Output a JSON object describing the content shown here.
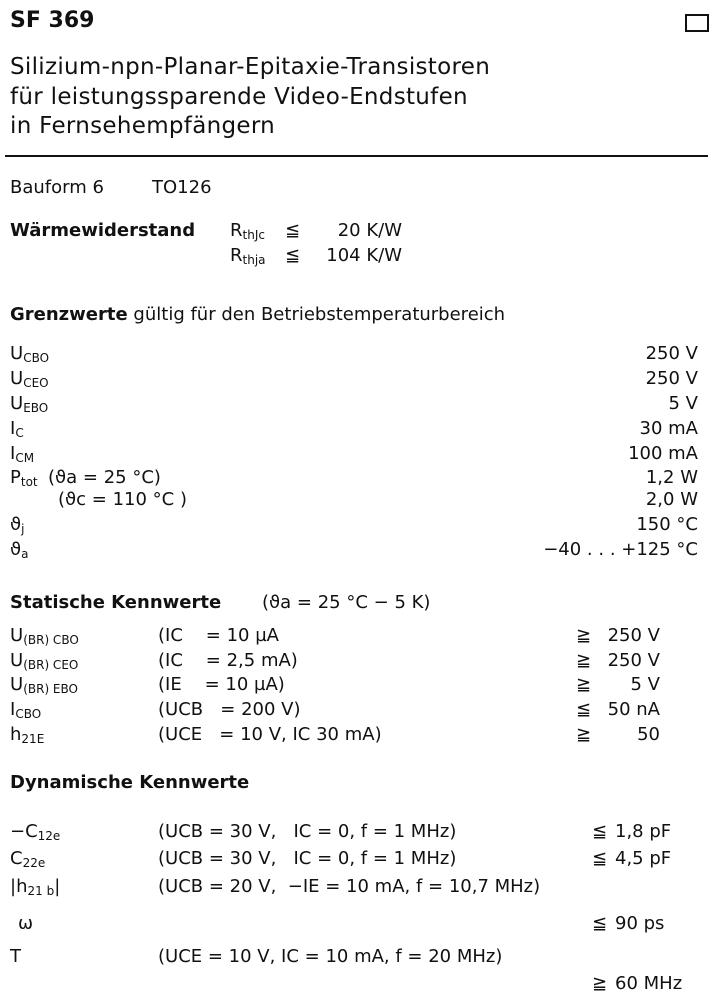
{
  "header": {
    "title": "SF 369",
    "subtitle_lines": [
      "Silizium-npn-Planar-Epitaxie-Transistoren",
      "für leistungssparende Video-Endstufen",
      "in Fernsehempfängern"
    ]
  },
  "package": {
    "label": "Bauform 6",
    "case": "TO126"
  },
  "thermal": {
    "label": "Wärmewiderstand",
    "rows": [
      {
        "sym": "R",
        "sub": "thJc",
        "rel": "≦",
        "value": "20 K/W"
      },
      {
        "sym": "R",
        "sub": "thja",
        "rel": "≦",
        "value": "104 K/W"
      }
    ]
  },
  "limits": {
    "heading_bold": "Grenzwerte",
    "heading_rest": "gültig für den Betriebstemperaturbereich",
    "rows": [
      {
        "sym": "U",
        "sub": "CBO",
        "cond": "",
        "value": "250 V"
      },
      {
        "sym": "U",
        "sub": "CEO",
        "cond": "",
        "value": "250 V"
      },
      {
        "sym": "U",
        "sub": "EBO",
        "cond": "",
        "value": "5 V"
      },
      {
        "sym": "I",
        "sub": "C",
        "cond": "",
        "value": "30 mA"
      },
      {
        "sym": "I",
        "sub": "CM",
        "cond": "",
        "value": "100 mA"
      },
      {
        "sym": "P",
        "sub": "tot",
        "cond": "(ϑa = 25 °C)",
        "value": "1,2 W"
      },
      {
        "sym": "",
        "sub": "",
        "cond": "(ϑc = 110 °C )",
        "value": "2,0 W"
      },
      {
        "sym": "ϑ",
        "sub": "j",
        "cond": "",
        "value": "150 °C"
      },
      {
        "sym": "ϑ",
        "sub": "a",
        "cond": "",
        "value": "−40 . . . +125 °C"
      }
    ]
  },
  "static": {
    "heading_bold": "Statische Kennwerte",
    "heading_cond": "(ϑa = 25 °C − 5 K)",
    "rows": [
      {
        "sym": "U",
        "sub": "(BR) CBO",
        "cond": "(IC    = 10 µA",
        "rel": "≧",
        "value": "250 V"
      },
      {
        "sym": "U",
        "sub": "(BR) CEO",
        "cond": "(IC    = 2,5 mA)",
        "rel": "≧",
        "value": "250 V"
      },
      {
        "sym": "U",
        "sub": "(BR) EBO",
        "cond": "(IE    = 10 µA)",
        "rel": "≧",
        "value": "5 V"
      },
      {
        "sym": "I",
        "sub": "CBO",
        "cond": "(UCB   = 200 V)",
        "rel": "≦",
        "value": "50 nA"
      },
      {
        "sym": "h",
        "sub": "21E",
        "cond": "(UCE   = 10 V, IC 30 mA)",
        "rel": "≧",
        "value": "50"
      }
    ]
  },
  "dynamic": {
    "heading_bold": "Dynamische Kennwerte",
    "rows": [
      {
        "sym": "−C",
        "sub": "12e",
        "cond": "(UCB = 30 V,   IC = 0, f = 1 MHz)",
        "rel": "≦",
        "value": "1,8 pF"
      },
      {
        "sym": "C",
        "sub": "22e",
        "cond": "(UCB = 30 V,   IC = 0, f = 1 MHz)",
        "rel": "≦",
        "value": "4,5 pF"
      },
      {
        "sym": "|h",
        "sub": "21 b",
        "tail": "|",
        "cond": "(UCB = 20 V,  −IE = 10 mA, f = 10,7 MHz)",
        "rel": "",
        "value": ""
      },
      {
        "sym": "ω",
        "sub": "",
        "cond": "",
        "rel": "≦",
        "value": "90 ps"
      },
      {
        "sym": "T",
        "sub": "",
        "cond": "(UCE = 10 V, IC = 10 mA, f = 20 MHz)",
        "rel": "",
        "value": ""
      },
      {
        "sym": "",
        "sub": "",
        "cond": "",
        "rel": "≧",
        "value": "60 MHz"
      }
    ]
  }
}
